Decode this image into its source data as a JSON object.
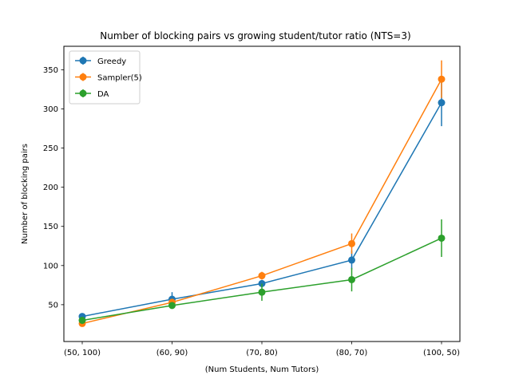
{
  "chart_data": {
    "type": "line",
    "title": "Number of blocking pairs vs growing student/tutor ratio (NTS=3)",
    "xlabel": "(Num Students, Num Tutors)",
    "ylabel": "Number of blocking pairs",
    "categories": [
      "(50, 100)",
      "(60, 90)",
      "(70, 80)",
      "(80, 70)",
      "(100, 50)"
    ],
    "ylim": [
      3,
      380
    ],
    "yticks": [
      50,
      100,
      150,
      200,
      250,
      300,
      350
    ],
    "grid": false,
    "legend_position": "top-left",
    "series": [
      {
        "name": "Greedy",
        "color": "#1f77b4",
        "values": [
          35,
          57,
          77,
          107,
          308
        ],
        "errors": [
          3,
          9,
          4,
          12,
          30
        ]
      },
      {
        "name": "Sampler(5)",
        "color": "#ff7f0e",
        "values": [
          26,
          53,
          87,
          128,
          338
        ],
        "errors": [
          3,
          4,
          5,
          13,
          24
        ]
      },
      {
        "name": "DA",
        "color": "#2ca02c",
        "values": [
          30,
          49,
          66,
          82,
          135
        ],
        "errors": [
          4,
          4,
          11,
          15,
          24
        ]
      }
    ]
  }
}
